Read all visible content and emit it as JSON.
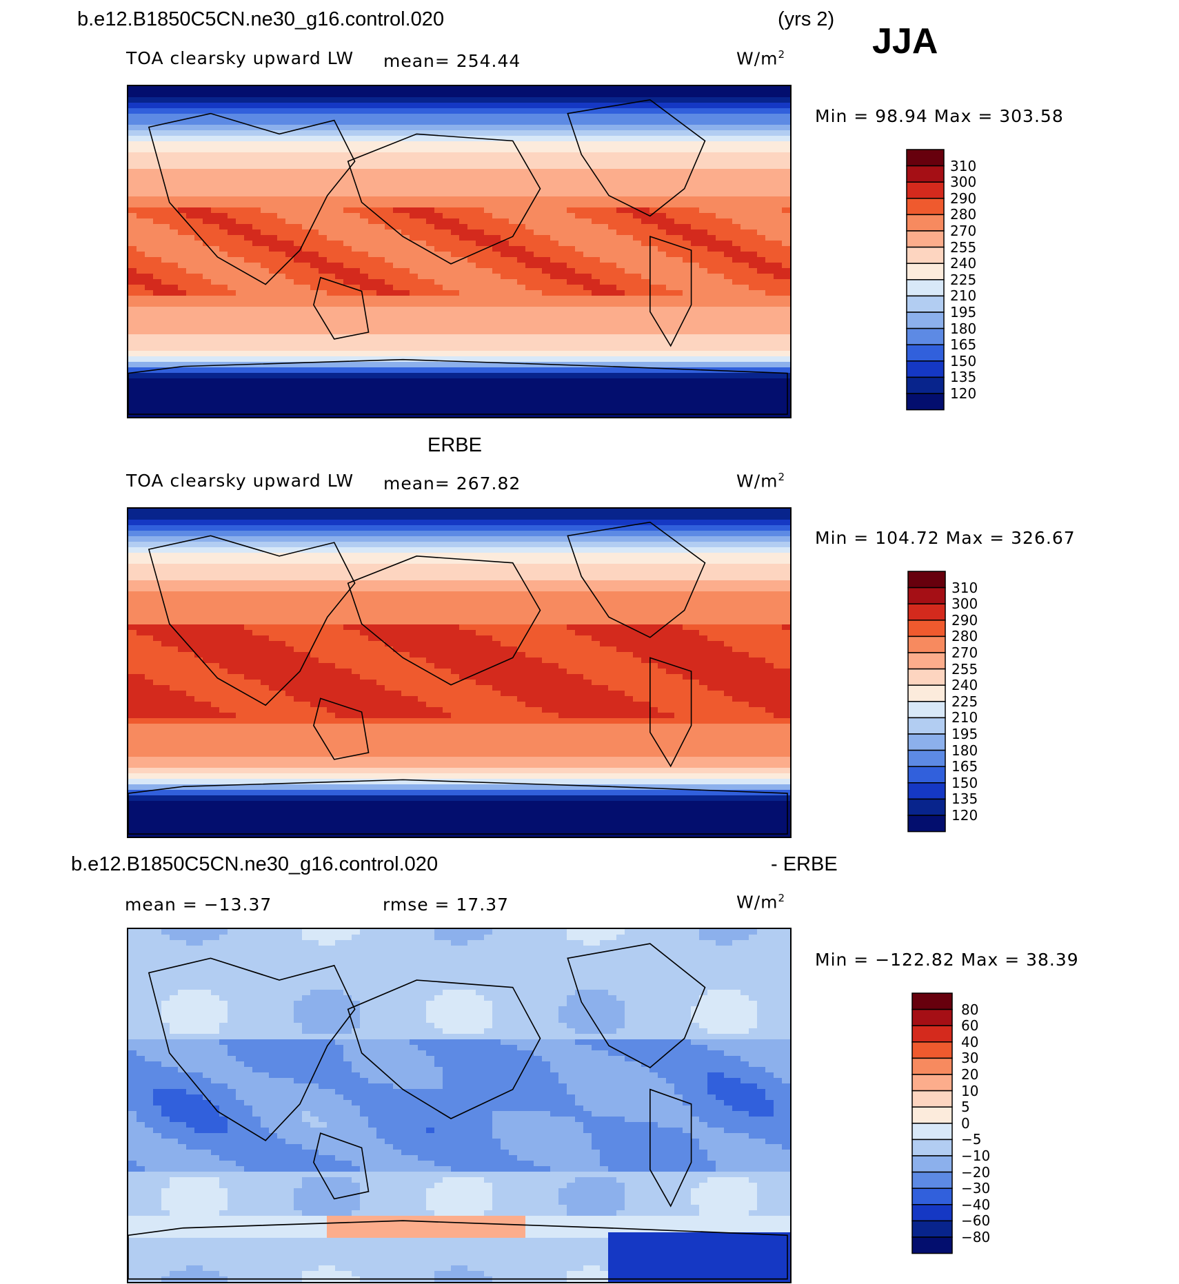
{
  "header": {
    "case_name": "b.e12.B1850C5CN.ne30_g16.control.020",
    "years": "(yrs 2)",
    "season": "JJA"
  },
  "panels": [
    {
      "id": "model",
      "variable": "TOA clearsky upward LW",
      "mean_text": "mean= 254.44",
      "units": "W/m",
      "units_exp": "2",
      "minmax_text": "Min =  98.94  Max = 303.58",
      "colorbar_levels": [
        "310",
        "300",
        "290",
        "280",
        "270",
        "255",
        "240",
        "225",
        "210",
        "195",
        "180",
        "165",
        "150",
        "135",
        "120"
      ],
      "colors": [
        "#67000d",
        "#a50f15",
        "#d42a1d",
        "#ef5a2e",
        "#f78a5f",
        "#fcad8c",
        "#fdd5c0",
        "#fcebdc",
        "#d8e8f8",
        "#b2cdf2",
        "#8cb0ec",
        "#5d8ae4",
        "#3160dc",
        "#1538c4",
        "#08248c",
        "#030e6e"
      ]
    },
    {
      "id": "obs",
      "title": "ERBE",
      "variable": "TOA clearsky upward LW",
      "mean_text": "mean= 267.82",
      "units": "W/m",
      "units_exp": "2",
      "minmax_text": "Min = 104.72 Max = 326.67",
      "colorbar_levels": [
        "310",
        "300",
        "290",
        "280",
        "270",
        "255",
        "240",
        "225",
        "210",
        "195",
        "180",
        "165",
        "150",
        "135",
        "120"
      ],
      "colors": [
        "#67000d",
        "#a50f15",
        "#d42a1d",
        "#ef5a2e",
        "#f78a5f",
        "#fcad8c",
        "#fdd5c0",
        "#fcebdc",
        "#d8e8f8",
        "#b2cdf2",
        "#8cb0ec",
        "#5d8ae4",
        "#3160dc",
        "#1538c4",
        "#08248c",
        "#030e6e"
      ]
    },
    {
      "id": "diff",
      "title_left": "b.e12.B1850C5CN.ne30_g16.control.020",
      "title_right": "- ERBE",
      "mean_text": "mean = −13.37",
      "rmse_text": "rmse =   17.37",
      "units": "W/m",
      "units_exp": "2",
      "minmax_text": "Min = −122.82 Max =   38.39",
      "colorbar_levels": [
        "80",
        "60",
        "40",
        "30",
        "20",
        "10",
        "5",
        "0",
        "−5",
        "−10",
        "−20",
        "−30",
        "−40",
        "−60",
        "−80"
      ],
      "colors": [
        "#67000d",
        "#a50f15",
        "#d42a1d",
        "#ef5a2e",
        "#f78a5f",
        "#fcad8c",
        "#fdd5c0",
        "#fcebdc",
        "#d8e8f8",
        "#b2cdf2",
        "#8cb0ec",
        "#5d8ae4",
        "#3160dc",
        "#1538c4",
        "#08248c",
        "#030e6e"
      ]
    }
  ],
  "chart_data": [
    {
      "type": "heatmap",
      "title": "TOA clearsky upward LW (model)",
      "mean": 254.44,
      "min": 98.94,
      "max": 303.58,
      "units": "W/m2",
      "levels": [
        120,
        135,
        150,
        165,
        180,
        195,
        210,
        225,
        240,
        255,
        270,
        280,
        290,
        300,
        310
      ]
    },
    {
      "type": "heatmap",
      "title": "TOA clearsky upward LW (ERBE)",
      "mean": 267.82,
      "min": 104.72,
      "max": 326.67,
      "units": "W/m2",
      "levels": [
        120,
        135,
        150,
        165,
        180,
        195,
        210,
        225,
        240,
        255,
        270,
        280,
        290,
        300,
        310
      ]
    },
    {
      "type": "heatmap",
      "title": "model - ERBE",
      "mean": -13.37,
      "rmse": 17.37,
      "min": -122.82,
      "max": 38.39,
      "units": "W/m2",
      "levels": [
        -80,
        -60,
        -40,
        -30,
        -20,
        -10,
        -5,
        0,
        5,
        10,
        20,
        30,
        40,
        60,
        80
      ]
    }
  ]
}
